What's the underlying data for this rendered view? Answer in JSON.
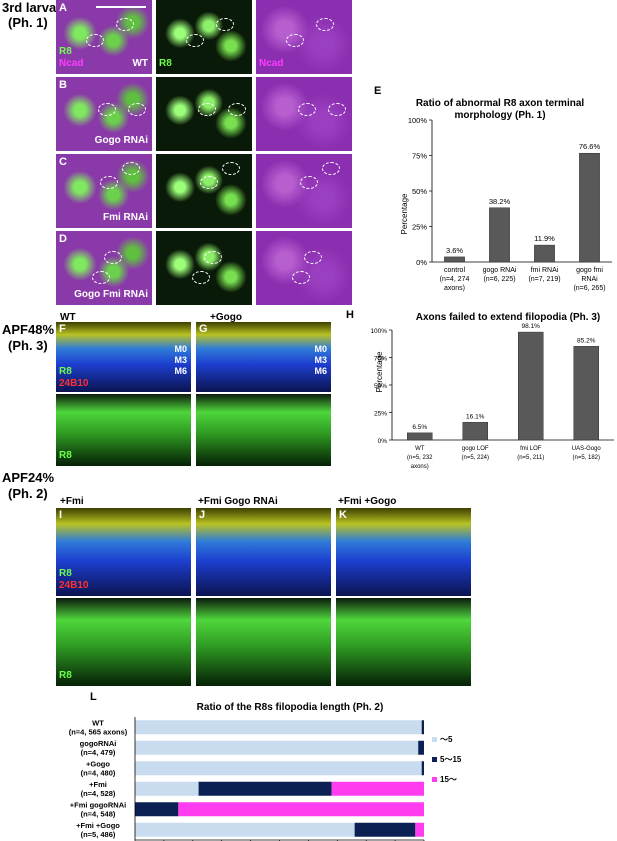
{
  "panels": {
    "A": "A",
    "B": "B",
    "C": "C",
    "D": "D",
    "E": "E",
    "F": "F",
    "G": "G",
    "H": "H",
    "I": "I",
    "J": "J",
    "K": "K",
    "L": "L"
  },
  "stage_labels": {
    "larva": "3rd larva",
    "larva_phase": "(Ph. 1)",
    "apf48": "APF48%",
    "apf48_phase": "(Ph. 3)",
    "apf24": "APF24%",
    "apf24_phase": "(Ph. 2)"
  },
  "micro_labels": {
    "r8": "R8",
    "ncad": "Ncad",
    "wt": "WT",
    "gogo_rnai": "Gogo RNAi",
    "fmi_rnai": "Fmi RNAi",
    "gogo_fmi_rnai": "Gogo Fmi RNAi",
    "plus_gogo": "+Gogo",
    "plus_fmi": "+Fmi",
    "fmi_gogo_rnai": "+Fmi  Gogo RNAi",
    "fmi_gogo": "+Fmi  +Gogo",
    "m0": "M0",
    "m3": "M3",
    "m6": "M6",
    "ab_24b10": "24B10"
  },
  "chart_data": [
    {
      "type": "bar",
      "title": "Ratio of abnormal R8 axon terminal morphology (Ph. 1)",
      "title_line1": "Ratio of abnormal R8 axon terminal",
      "title_line2": "morphology (Ph. 1)",
      "ylabel": "Percentage",
      "ylim": [
        0,
        100
      ],
      "yticks": [
        "0%",
        "25%",
        "50%",
        "75%",
        "100%"
      ],
      "categories": [
        [
          "control",
          "(n=4, 274",
          "axons)"
        ],
        [
          "gogo RNAi",
          "(n=6, 225)"
        ],
        [
          "fmi RNAi",
          "(n=7, 219)"
        ],
        [
          "gogo fmi",
          "RNAi",
          "(n=6, 265)"
        ]
      ],
      "values": [
        3.6,
        38.2,
        11.9,
        76.6
      ],
      "value_labels": [
        "3.6%",
        "38.2%",
        "11.9%",
        "76.6%"
      ],
      "color": "#595959"
    },
    {
      "type": "bar",
      "title": "Axons failed to extend filopodia (Ph. 3)",
      "ylabel": "Percentage",
      "ylim": [
        0,
        100
      ],
      "yticks": [
        "0%",
        "25%",
        "50%",
        "75%",
        "100%"
      ],
      "categories": [
        [
          "WT",
          "(n=5, 232",
          "axons)"
        ],
        [
          "gogo LOF",
          "(n=5, 224)"
        ],
        [
          "fmi LOF",
          "(n=5, 211)"
        ],
        [
          "UAS-Gogo",
          "(n=5, 182)"
        ]
      ],
      "values": [
        6.5,
        16.1,
        98.1,
        85.2
      ],
      "value_labels": [
        "6.5%",
        "16.1%",
        "98.1%",
        "85.2%"
      ],
      "color": "#595959"
    },
    {
      "type": "bar",
      "orientation": "horizontal-stacked",
      "title": "Ratio of the R8s filopodia length (Ph. 2)",
      "xlim": [
        0,
        100
      ],
      "xticks": [
        "0%",
        "10%",
        "20%",
        "30%",
        "40%",
        "50%",
        "60%",
        "70%",
        "80%",
        "90%",
        "100%"
      ],
      "categories": [
        [
          "WT",
          "(n=4, 565 axons)"
        ],
        [
          "gogoRNAi",
          "(n=4, 479)"
        ],
        [
          "+Gogo",
          "(n=4, 480)"
        ],
        [
          "+Fmi",
          "(n=4, 528)"
        ],
        [
          "+Fmi gogoRNAi",
          "(n=4, 548)"
        ],
        [
          "+Fmi +Gogo",
          "(n=5, 486)"
        ]
      ],
      "series": [
        {
          "name": "〜5",
          "color": "#c9dcef",
          "values": [
            99.2,
            98,
            99.2,
            22,
            0,
            76
          ]
        },
        {
          "name": "5〜15",
          "color": "#0b2154",
          "values": [
            0.8,
            2,
            0.8,
            46,
            15,
            21
          ]
        },
        {
          "name": "15〜",
          "color": "#ff3cf0",
          "values": [
            0,
            0,
            0,
            32,
            85,
            3
          ]
        }
      ]
    }
  ]
}
